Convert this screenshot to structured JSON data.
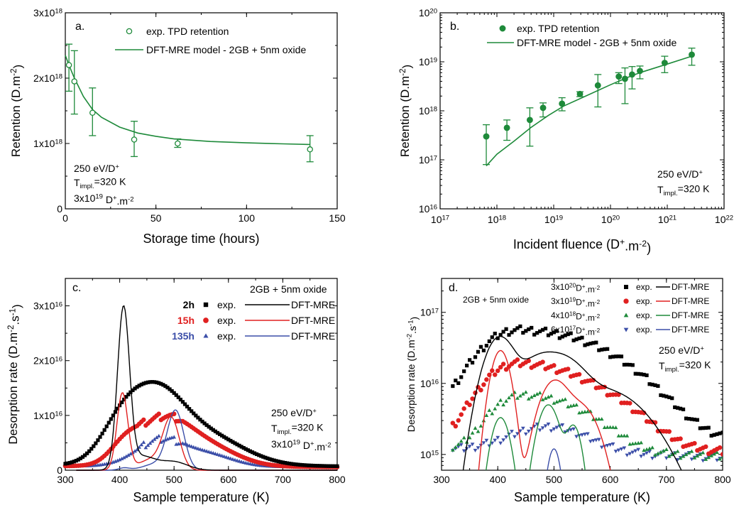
{
  "chart_data": [
    {
      "panel": "a",
      "type": "scatter",
      "panel_label": "a.",
      "xlabel": "Storage time (hours)",
      "ylabel": "Retention (D.m",
      "ylabel_sup": "-2",
      "ylabel_close": ")",
      "xlim": [
        0,
        150
      ],
      "ylim": [
        0,
        3e+18
      ],
      "x_ticks": [
        0,
        50,
        100,
        150
      ],
      "y_ticks": [
        {
          "value": 0,
          "base": "0",
          "exp": ""
        },
        {
          "value": 1e+18,
          "base": "1x10",
          "exp": "18"
        },
        {
          "value": 2e+18,
          "base": "2x10",
          "exp": "18"
        },
        {
          "value": 3e+18,
          "base": "3x10",
          "exp": "18"
        }
      ],
      "legend": [
        "exp. TPD retention",
        "DFT-MRE model - 2GB + 5nm oxide"
      ],
      "notes": [
        {
          "text": "250 eV/D",
          "sup": "+"
        },
        {
          "text": "T",
          "sub": "impl.",
          "tail": "=320 K"
        },
        {
          "text": "3x10",
          "sup": "19",
          "tail": " D",
          "sup2": "+",
          "tail2": ".m",
          "sup3": "-2"
        }
      ],
      "color": "#1e8a3a",
      "exp": {
        "x": [
          2,
          5,
          15,
          38,
          62,
          135
        ],
        "y": [
          2.2e+18,
          1.95e+18,
          1.47e+18,
          1.06e+18,
          1e+18,
          9.1e+17
        ],
        "yerr_low": [
          1.8e+18,
          1.45e+18,
          1.12e+18,
          8e+17,
          9.4e+17,
          7.2e+17
        ],
        "yerr_high": [
          2.52e+18,
          2.42e+18,
          1.85e+18,
          1.34e+18,
          1.07e+18,
          1.12e+18
        ]
      },
      "model": {
        "x": [
          0,
          2,
          5,
          10,
          15,
          20,
          30,
          40,
          50,
          60,
          80,
          100,
          120,
          135
        ],
        "y": [
          2.35e+18,
          2.2e+18,
          2e+18,
          1.72e+18,
          1.52e+18,
          1.4e+18,
          1.25e+18,
          1.16e+18,
          1.11e+18,
          1.07e+18,
          1.03e+18,
          1.01e+18,
          9.95e+17,
          9.85e+17
        ]
      }
    },
    {
      "panel": "b",
      "type": "scatter",
      "panel_label": "b.",
      "xlabel": "Incident fluence (D",
      "xlabel_sup": "+",
      "xlabel_mid": ".m",
      "xlabel_sup2": "-2",
      "xlabel_close": ")",
      "ylabel": "Retention (D.m",
      "ylabel_sup": "-2",
      "ylabel_close": ")",
      "x_scale": "log",
      "y_scale": "log",
      "xlim": [
        1e+17,
        1e+22
      ],
      "ylim": [
        1e+16,
        1e+20
      ],
      "x_tick_exps": [
        "17",
        "18",
        "19",
        "20",
        "21",
        "22"
      ],
      "y_tick_exps": [
        "16",
        "17",
        "18",
        "19",
        "20"
      ],
      "tick_base": "10",
      "legend": [
        "exp. TPD retention",
        "DFT-MRE model - 2GB + 5nm oxide"
      ],
      "notes": [
        {
          "text": "250 eV/D",
          "sup": "+"
        },
        {
          "text": "T",
          "sub": "impl.",
          "tail": "=320 K"
        }
      ],
      "color": "#1e8a3a",
      "exp": {
        "x": [
          6.5e+17,
          1.5e+18,
          3.8e+18,
          6.5e+18,
          1.4e+19,
          2.9e+19,
          6e+19,
          1.4e+20,
          1.8e+20,
          2.4e+20,
          3.3e+20,
          9e+20,
          2.7e+21
        ],
        "y": [
          3e+17,
          4.5e+17,
          6.5e+17,
          1.15e+18,
          1.4e+18,
          2.2e+18,
          3.3e+18,
          5e+18,
          4.5e+18,
          5.5e+18,
          6.5e+18,
          9.5e+18,
          1.4e+19
        ],
        "yerr_low": [
          8e+16,
          2.5e+17,
          1.9e+17,
          7.5e+17,
          1e+18,
          1.95e+18,
          1.2e+18,
          3.6e+18,
          1.4e+18,
          2.8e+18,
          4.5e+18,
          6e+18,
          8.5e+18
        ],
        "yerr_high": [
          5.2e+17,
          6.5e+17,
          1.15e+18,
          1.45e+18,
          1.85e+18,
          2.45e+18,
          5.5e+18,
          6e+18,
          7.5e+18,
          8e+18,
          8.2e+18,
          1.3e+19,
          1.9e+19
        ]
      },
      "model": {
        "x": [
          6.5e+17,
          1e+18,
          2e+18,
          4e+18,
          8e+18,
          1.5e+19,
          3e+19,
          6e+19,
          1e+20,
          2e+20,
          3.3e+20,
          1e+21,
          2.7e+21
        ],
        "y": [
          7.5e+16,
          1.3e+17,
          2.4e+17,
          4.6e+17,
          8e+17,
          1.25e+18,
          1.8e+18,
          2.6e+18,
          3.4e+18,
          4.8e+18,
          6e+18,
          9e+18,
          1.3e+19
        ]
      }
    },
    {
      "panel": "c",
      "type": "line",
      "panel_label": "c.",
      "xlabel": "Sample temperature (K)",
      "ylabel": "Desorption rate (D.m",
      "ylabel_sup": "-2",
      "ylabel_mid": ".s",
      "ylabel_sup2": "-1",
      "ylabel_close": ")",
      "xlim": [
        300,
        800
      ],
      "ylim": [
        0,
        3.5e+16
      ],
      "x_ticks": [
        300,
        400,
        500,
        600,
        700,
        800
      ],
      "y_ticks": [
        {
          "value": 0,
          "base": "0",
          "exp": ""
        },
        {
          "value": 1e+16,
          "base": "1x10",
          "exp": "16"
        },
        {
          "value": 2e+16,
          "base": "2x10",
          "exp": "16"
        },
        {
          "value": 3e+16,
          "base": "3x10",
          "exp": "16"
        }
      ],
      "legend_title": "2GB + 5nm oxide",
      "notes": [
        {
          "text": "250 eV/D",
          "sup": "+"
        },
        {
          "text": "T",
          "sub": "impl.",
          "tail": "=320 K"
        },
        {
          "text": "3x10",
          "sup": "19",
          "tail": " D",
          "sup2": "+",
          "tail2": ".m",
          "sup3": "-2"
        }
      ],
      "series": [
        {
          "name": "2h",
          "exp_label": "exp.",
          "model_label": "DFT-MRE",
          "color": "#000000",
          "marker": "square",
          "exp_peaks": [
            [
              1000000000000000.0,
              0,
              999
            ],
            [
              5500000000000000.0,
              400,
              38
            ],
            [
              1.15e+16,
              465,
              50
            ],
            [
              5500000000000000.0,
              555,
              70
            ]
          ],
          "model_peaks": [
            [
              2.9e+16,
              407,
              11
            ],
            [
              1500000000000000.0,
              500,
              25
            ],
            [
              2500000000000000.0,
              440,
              25
            ]
          ]
        },
        {
          "name": "15h",
          "exp_label": "exp.",
          "model_label": "DFT-MRE",
          "color": "#e02020",
          "marker": "circle",
          "exp_peaks": [
            [
              800000000000000.0,
              0,
              999
            ],
            [
              3000000000000000.0,
              410,
              28
            ],
            [
              7800000000000000.0,
              478,
              48
            ],
            [
              3500000000000000.0,
              560,
              55
            ]
          ],
          "model_peaks": [
            [
              1.4e+16,
              405,
              10
            ],
            [
              9000000000000000.0,
              495,
              15
            ],
            [
              2000000000000000.0,
              460,
              25
            ]
          ]
        },
        {
          "name": "135h",
          "exp_label": "exp.",
          "model_label": "DFT-MRE",
          "color": "#3b4ea8",
          "marker": "triangle",
          "exp_peaks": [
            [
              800000000000000.0,
              0,
              999
            ],
            [
              4700000000000000.0,
              475,
              45
            ],
            [
              2000000000000000.0,
              565,
              45
            ]
          ],
          "model_peaks": [
            [
              400000000000000.0,
              408,
              10
            ],
            [
              1.05e+16,
              503,
              15
            ],
            [
              1200000000000000.0,
              470,
              25
            ]
          ]
        }
      ]
    },
    {
      "panel": "d",
      "type": "line",
      "panel_label": "d.",
      "xlabel": "Sample temperature (K)",
      "ylabel": "Desorption rate (D.m",
      "ylabel_sup": "-2",
      "ylabel_mid": ".s",
      "ylabel_sup2": "-1",
      "ylabel_close": ")",
      "y_scale": "log",
      "xlim": [
        300,
        800
      ],
      "ylim": [
        600000000000000.0,
        3e+17
      ],
      "x_ticks": [
        300,
        400,
        500,
        600,
        700,
        800
      ],
      "y_tick_exps": [
        "15",
        "16",
        "17"
      ],
      "tick_base": "10",
      "legend_title": "2GB + 5nm oxide",
      "notes": [
        {
          "text": "250 eV/D",
          "sup": "+"
        },
        {
          "text": "T",
          "sub": "impl.",
          "tail": "=320 K"
        }
      ],
      "series": [
        {
          "name": "3x10",
          "name_sup": "20",
          "name_tail": "D",
          "name_sup2": "+",
          "name_tail2": ".m",
          "name_sup3": "-2",
          "exp_label": "exp.",
          "model_label": "DFT-MRE",
          "color": "#000000",
          "marker": "square",
          "exp_peaks": [
            [
              2200000000000000.0,
              0,
              999
            ],
            [
              1.8e+16,
              410,
              38
            ],
            [
              4.2e+16,
              470,
              75
            ],
            [
              1.6e+16,
              580,
              75
            ]
          ],
          "model_peaks": [
            [
              4.4e+16,
              403,
              22
            ],
            [
              2e+16,
              470,
              30
            ],
            [
              1.6e+16,
              520,
              30
            ],
            [
              8000000000000000.0,
              590,
              60
            ]
          ]
        },
        {
          "name": "3x10",
          "name_sup": "19",
          "name_tail": "D",
          "name_sup2": "+",
          "name_tail2": ".m",
          "name_sup3": "-2",
          "exp_label": "exp.",
          "model_label": "DFT-MRE",
          "color": "#e02020",
          "marker": "circle",
          "exp_peaks": [
            [
              1500000000000000.0,
              0,
              999
            ],
            [
              7000000000000000.0,
              410,
              38
            ],
            [
              1.25e+16,
              465,
              60
            ],
            [
              6000000000000000.0,
              560,
              70
            ]
          ],
          "model_peaks": [
            [
              2.9e+16,
              405,
              14
            ],
            [
              1.05e+16,
              500,
              22
            ],
            [
              4500000000000000.0,
              550,
              25
            ]
          ]
        },
        {
          "name": "4x10",
          "name_sup": "18",
          "name_tail": "D",
          "name_sup2": "+",
          "name_tail2": ".m",
          "name_sup3": "-2",
          "exp_label": "exp.",
          "model_label": "DFT-MRE",
          "color": "#1e8a3a",
          "marker": "triangle",
          "exp_peaks": [
            [
              1300000000000000.0,
              0,
              999
            ],
            [
              3000000000000000.0,
              420,
              35
            ],
            [
              4200000000000000.0,
              480,
              50
            ],
            [
              1500000000000000.0,
              560,
              50
            ]
          ],
          "model_peaks": [
            [
              3300000000000000.0,
              405,
              14
            ],
            [
              5000000000000000.0,
              490,
              16
            ],
            [
              2500000000000000.0,
              535,
              12
            ]
          ]
        },
        {
          "name": "6x10",
          "name_sup": "17",
          "name_tail": "D",
          "name_sup2": "+",
          "name_tail2": ".m",
          "name_sup3": "-2",
          "exp_label": "exp.",
          "model_label": "DFT-MRE",
          "color": "#3b4ea8",
          "marker": "triangle-down",
          "exp_peaks": [
            [
              1250000000000000.0,
              0,
              999
            ],
            [
              1350000000000000.0,
              490,
              60
            ]
          ],
          "model_peaks": [
            [
              1200000000000000.0,
              500,
              10
            ]
          ]
        }
      ]
    }
  ]
}
